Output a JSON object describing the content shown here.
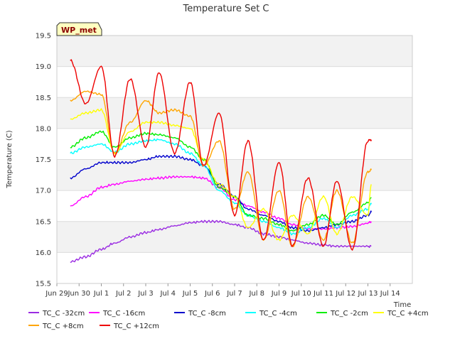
{
  "chart_data": {
    "type": "line",
    "title": "Temperature Set C",
    "xlabel": "Time",
    "ylabel": "Temperature (C)",
    "badge": "WP_met",
    "ylim": [
      15.5,
      19.5
    ],
    "yticks": [
      "15.5",
      "16.0",
      "16.5",
      "17.0",
      "17.5",
      "18.0",
      "18.5",
      "19.0",
      "19.5"
    ],
    "xlim": [
      0,
      16
    ],
    "xticks": [
      "Jun 29",
      "Jun 30",
      "Jul 1",
      "Jul 2",
      "Jul 3",
      "Jul 4",
      "Jul 5",
      "Jul 6",
      "Jul 7",
      "Jul 8",
      "Jul 9",
      "Jul 10",
      "Jul 11",
      "Jul 12",
      "Jul 13",
      "Jul 14"
    ],
    "x_days": [
      0.6,
      1.3,
      2.0,
      2.6,
      3.3,
      4.0,
      4.6,
      5.3,
      6.0,
      6.6,
      7.3,
      8.0,
      8.6,
      9.3,
      10.0,
      10.6,
      11.3,
      12.0,
      12.6,
      13.3,
      14.0,
      14.15
    ],
    "grid": true,
    "legend_position": "bottom",
    "series": [
      {
        "name": "TC_C -32cm",
        "color": "#9a2be2",
        "values": [
          15.85,
          15.93,
          16.05,
          16.15,
          16.25,
          16.32,
          16.37,
          16.43,
          16.48,
          16.5,
          16.5,
          16.45,
          16.4,
          16.3,
          16.25,
          16.2,
          16.15,
          16.12,
          16.1,
          16.1,
          16.1,
          16.1
        ]
      },
      {
        "name": "TC_C -16cm",
        "color": "#ff00ff",
        "values": [
          16.75,
          16.9,
          17.05,
          17.1,
          17.15,
          17.18,
          17.2,
          17.22,
          17.22,
          17.2,
          17.05,
          16.85,
          16.75,
          16.65,
          16.55,
          16.45,
          16.38,
          16.38,
          16.4,
          16.42,
          16.47,
          16.5
        ]
      },
      {
        "name": "TC_C -8cm",
        "color": "#0000cc",
        "values": [
          17.2,
          17.35,
          17.45,
          17.45,
          17.45,
          17.5,
          17.55,
          17.55,
          17.5,
          17.4,
          17.1,
          16.9,
          16.7,
          16.6,
          16.5,
          16.4,
          16.35,
          16.4,
          16.45,
          16.5,
          16.6,
          16.65
        ]
      },
      {
        "name": "TC_C -4cm",
        "color": "#00ffff",
        "values": [
          17.6,
          17.7,
          17.75,
          17.62,
          17.75,
          17.8,
          17.82,
          17.75,
          17.6,
          17.4,
          17.0,
          16.8,
          16.6,
          16.5,
          16.4,
          16.3,
          16.4,
          16.55,
          16.4,
          16.6,
          16.7,
          16.8
        ]
      },
      {
        "name": "TC_C -2cm",
        "color": "#00ee00",
        "values": [
          17.7,
          17.85,
          17.95,
          17.7,
          17.85,
          17.92,
          17.9,
          17.85,
          17.7,
          17.5,
          17.05,
          16.9,
          16.6,
          16.55,
          16.45,
          16.35,
          16.45,
          16.6,
          16.45,
          16.65,
          16.8,
          16.88
        ]
      },
      {
        "name": "TC_C +4cm",
        "color": "#ffff00",
        "values": [
          18.15,
          18.25,
          18.3,
          17.6,
          17.95,
          18.1,
          18.1,
          18.05,
          18.0,
          17.5,
          17.1,
          16.9,
          16.4,
          16.7,
          16.2,
          16.6,
          16.3,
          16.9,
          16.3,
          16.9,
          16.6,
          17.1
        ]
      },
      {
        "name": "TC_C +8cm",
        "color": "#ffa500",
        "values": [
          18.45,
          18.6,
          18.55,
          17.6,
          18.1,
          18.45,
          18.25,
          18.3,
          18.2,
          17.4,
          17.8,
          16.7,
          17.3,
          16.2,
          17.0,
          16.1,
          16.9,
          16.2,
          17.0,
          16.15,
          17.3,
          17.33
        ]
      },
      {
        "name": "TC_C +12cm",
        "color": "#ee0000",
        "values": [
          19.1,
          18.4,
          19.0,
          17.55,
          18.8,
          17.7,
          18.9,
          17.6,
          18.75,
          17.4,
          18.25,
          16.6,
          17.8,
          16.2,
          17.45,
          16.1,
          17.2,
          16.1,
          17.15,
          16.05,
          17.8,
          17.82
        ]
      }
    ]
  }
}
